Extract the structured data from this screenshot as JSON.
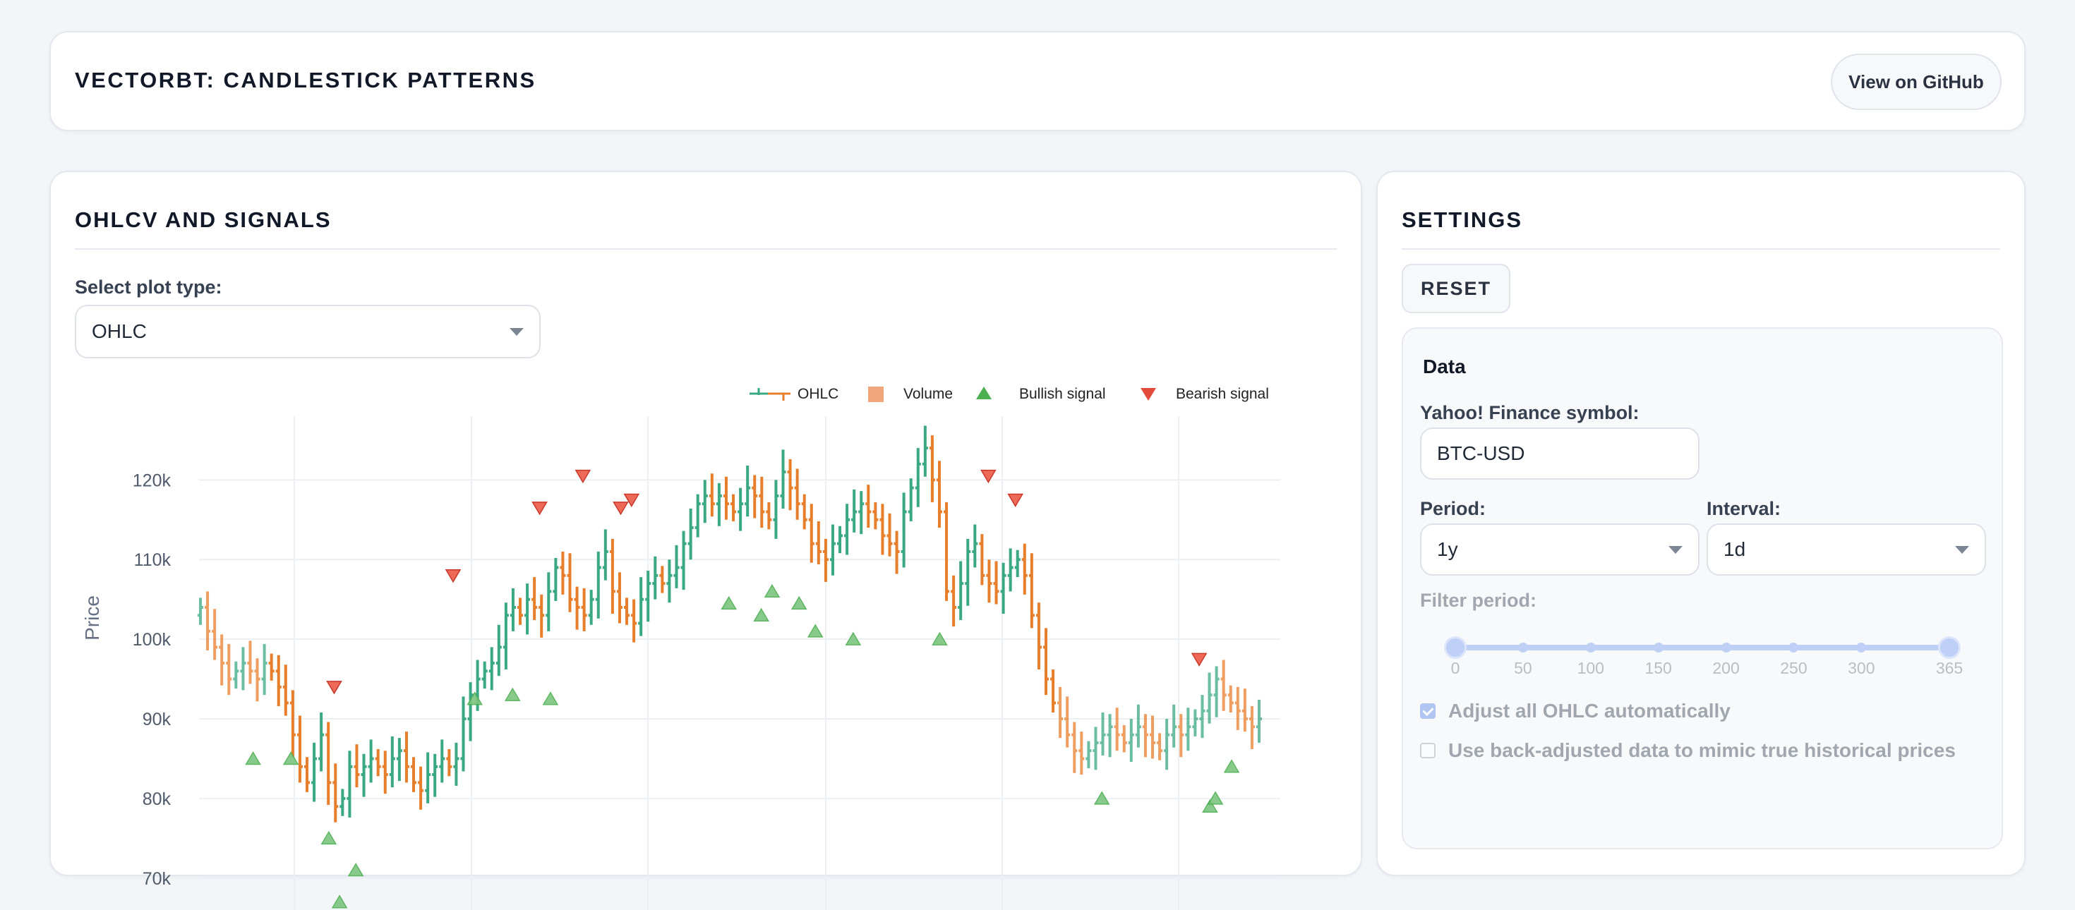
{
  "header": {
    "title": "VECTORBT: CANDLESTICK PATTERNS",
    "github_label": "View on GitHub"
  },
  "plot_panel": {
    "title": "OHLCV AND SIGNALS",
    "plot_type_label": "Select plot type:",
    "plot_type_value": "OHLC"
  },
  "settings": {
    "title": "SETTINGS",
    "reset_label": "RESET",
    "data": {
      "title": "Data",
      "symbol_label": "Yahoo! Finance symbol:",
      "symbol_value": "BTC-USD",
      "period_label": "Period:",
      "period_value": "1y",
      "interval_label": "Interval:",
      "interval_value": "1d",
      "filter_label": "Filter period:",
      "filter_marks": [
        "0",
        "50",
        "100",
        "150",
        "200",
        "250",
        "300",
        "365"
      ],
      "filter_range": [
        0,
        365
      ],
      "adjust_label": "Adjust all OHLC automatically",
      "adjust_checked": true,
      "backadjust_label": "Use back-adjusted data to mimic true historical prices",
      "backadjust_checked": false
    }
  },
  "colors": {
    "increasing": "#3aa882",
    "decreasing": "#e77e2c",
    "bullish": "#4caf50",
    "bearish": "#e24a3b",
    "volume": "#f2a67c",
    "accent": "#7a9df2"
  },
  "chart_data": {
    "type": "ohlc",
    "ylabel": "Price",
    "y_ticks": [
      "70k",
      "80k",
      "90k",
      "100k",
      "110k",
      "120k"
    ],
    "ylim": [
      66000,
      128000
    ],
    "legend": [
      "OHLC",
      "Volume",
      "Bullish signal",
      "Bearish signal"
    ],
    "legend_position": "top-right",
    "grid": true,
    "close_series": [
      104,
      101,
      99,
      97,
      95,
      96,
      97,
      96,
      95,
      97,
      96,
      94,
      92,
      88,
      84,
      82,
      85,
      88,
      82,
      79,
      80,
      84,
      83,
      84,
      85,
      84,
      83,
      85,
      86,
      84,
      82,
      81,
      83,
      84,
      85,
      84,
      85,
      90,
      93,
      95,
      96,
      97,
      99,
      103,
      104,
      103,
      105,
      104,
      103,
      106,
      109,
      108,
      105,
      104,
      103,
      105,
      109,
      111,
      106,
      104,
      103,
      102,
      105,
      107,
      108,
      107,
      108,
      109,
      112,
      114,
      117,
      118,
      117,
      118,
      117,
      116,
      117,
      119,
      118,
      116,
      115,
      118,
      121,
      119,
      117,
      115,
      112,
      111,
      110,
      112,
      113,
      115,
      116,
      117,
      116,
      115,
      113,
      112,
      111,
      116,
      119,
      122,
      124,
      120,
      116,
      106,
      104,
      107,
      111,
      112,
      108,
      107,
      106,
      108,
      109,
      110,
      108,
      103,
      99,
      95,
      92,
      90,
      88,
      86,
      85,
      86,
      87,
      88,
      89,
      88,
      87,
      88,
      89,
      88,
      87,
      86,
      88,
      89,
      88,
      89,
      90,
      91,
      93,
      95,
      93,
      92,
      91,
      90,
      89,
      90
    ],
    "bullish_signals": [
      [
        0.05,
        85
      ],
      [
        0.085,
        85
      ],
      [
        0.12,
        75
      ],
      [
        0.13,
        67
      ],
      [
        0.145,
        71
      ],
      [
        0.255,
        92.5
      ],
      [
        0.29,
        93
      ],
      [
        0.325,
        92.5
      ],
      [
        0.49,
        104.5
      ],
      [
        0.52,
        103
      ],
      [
        0.53,
        106
      ],
      [
        0.555,
        104.5
      ],
      [
        0.57,
        101
      ],
      [
        0.605,
        100
      ],
      [
        0.685,
        100
      ],
      [
        0.835,
        80
      ],
      [
        0.935,
        79
      ],
      [
        0.94,
        80
      ],
      [
        0.955,
        84
      ]
    ],
    "bearish_signals": [
      [
        0.125,
        94
      ],
      [
        0.235,
        108
      ],
      [
        0.315,
        116.5
      ],
      [
        0.355,
        120.5
      ],
      [
        0.39,
        116.5
      ],
      [
        0.4,
        117.5
      ],
      [
        0.73,
        120.5
      ],
      [
        0.755,
        117.5
      ],
      [
        0.925,
        97.5
      ]
    ]
  }
}
